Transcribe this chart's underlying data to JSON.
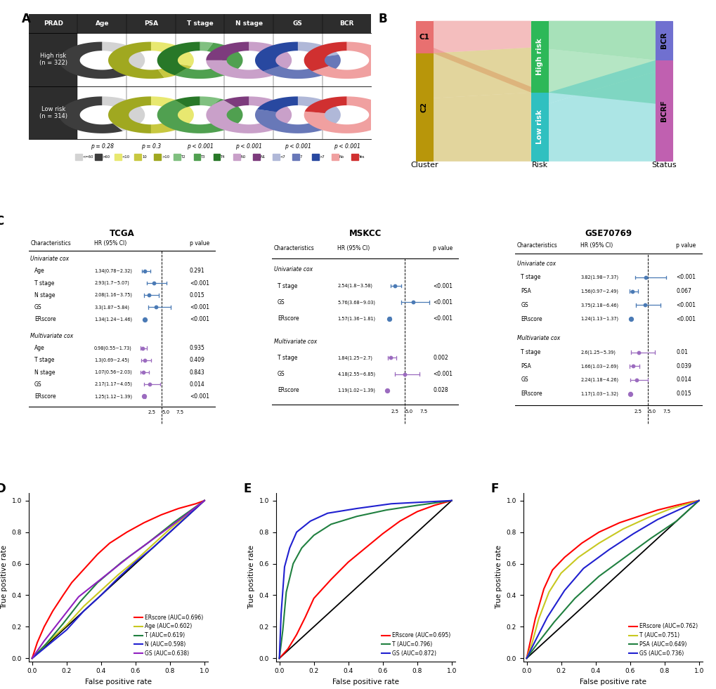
{
  "panel_A": {
    "header_color": "#2d2d2d",
    "col_labels": [
      "PRAD",
      "Age",
      "PSA",
      "T stage",
      "N stage",
      "GS",
      "BCR"
    ],
    "p_values": [
      "p = 0.28",
      "p = 0.3",
      "p < 0.001",
      "p < 0.001",
      "p < 0.001",
      "p < 0.001"
    ],
    "legend_labels": [
      "<=60",
      ">60",
      "<10",
      "10",
      ">10",
      "T2",
      "T3",
      "T4",
      "N0",
      "N1",
      "<7",
      "7",
      ">7",
      "No",
      "Yes"
    ],
    "legend_colors": [
      "#d3d3d3",
      "#3d3d3d",
      "#e8e870",
      "#c8c840",
      "#a0a820",
      "#80c080",
      "#50a050",
      "#287828",
      "#c9a0c9",
      "#7d3b7d",
      "#b0b8d8",
      "#6878b8",
      "#2848a0",
      "#f0a0a0",
      "#d03030"
    ],
    "donut_specs": [
      {
        "col": 1,
        "yh": 0.685,
        "yl": 0.315,
        "sh": [
          0.38,
          0.62
        ],
        "sl": [
          0.42,
          0.58
        ],
        "colors": [
          "#d3d3d3",
          "#3d3d3d"
        ]
      },
      {
        "col": 2,
        "yh": 0.685,
        "yl": 0.315,
        "sh": [
          0.3,
          0.15,
          0.55
        ],
        "sl": [
          0.38,
          0.12,
          0.5
        ],
        "colors": [
          "#e8e870",
          "#c8c840",
          "#a0a820"
        ]
      },
      {
        "col": 3,
        "yh": 0.685,
        "yl": 0.315,
        "sh": [
          0.05,
          0.55,
          0.4
        ],
        "sl": [
          0.08,
          0.82,
          0.1
        ],
        "colors": [
          "#80c080",
          "#50a050",
          "#287828"
        ]
      },
      {
        "col": 4,
        "yh": 0.685,
        "yl": 0.315,
        "sh": [
          0.75,
          0.25
        ],
        "sl": [
          0.9,
          0.1
        ],
        "colors": [
          "#c9a0c9",
          "#7d3b7d"
        ]
      },
      {
        "col": 5,
        "yh": 0.685,
        "yl": 0.315,
        "sh": [
          0.2,
          0.45,
          0.35
        ],
        "sl": [
          0.4,
          0.4,
          0.2
        ],
        "colors": [
          "#b0b8d8",
          "#6878b8",
          "#2848a0"
        ]
      },
      {
        "col": 6,
        "yh": 0.685,
        "yl": 0.315,
        "sh": [
          0.65,
          0.35
        ],
        "sl": [
          0.78,
          0.22
        ],
        "colors": [
          "#f0a0a0",
          "#d03030"
        ]
      }
    ]
  },
  "panel_C": {
    "cohorts": [
      "TCGA",
      "MSKCC",
      "GSE70769"
    ],
    "TCGA": {
      "univariate": {
        "labels": [
          "Age",
          "T stage",
          "N stage",
          "GS",
          "ERscore"
        ],
        "hr": [
          1.34,
          2.93,
          2.08,
          3.3,
          1.34
        ],
        "ci_low": [
          0.78,
          1.7,
          1.16,
          1.87,
          1.24
        ],
        "ci_high": [
          2.32,
          5.07,
          3.75,
          5.84,
          1.46
        ],
        "pval": [
          "0.291",
          "<0.001",
          "0.015",
          "<0.001",
          "<0.001"
        ],
        "ci_str": [
          "1.34(0.78~2.32)",
          "2.93(1.7~5.07)",
          "2.08(1.16~3.75)",
          "3.3(1.87~5.84)",
          "1.34(1.24~1.46)"
        ],
        "color": "#4a7ab5"
      },
      "multivariate": {
        "labels": [
          "Age",
          "T stage",
          "N stage",
          "GS",
          "ERscore"
        ],
        "hr": [
          0.98,
          1.3,
          1.07,
          2.17,
          1.25
        ],
        "ci_low": [
          0.55,
          0.69,
          0.56,
          1.17,
          1.12
        ],
        "ci_high": [
          1.73,
          2.45,
          2.03,
          4.05,
          1.39
        ],
        "pval": [
          "0.935",
          "0.409",
          "0.843",
          "0.014",
          "<0.001"
        ],
        "ci_str": [
          "0.98(0.55~1.73)",
          "1.3(0.69~2.45)",
          "1.07(0.56~2.03)",
          "2.17(1.17~4.05)",
          "1.25(1.12~1.39)"
        ],
        "color": "#9b6bbf"
      }
    },
    "MSKCC": {
      "univariate": {
        "labels": [
          "T stage",
          "GS",
          "ERscore"
        ],
        "hr": [
          2.54,
          5.76,
          1.57
        ],
        "ci_low": [
          1.8,
          3.68,
          1.36
        ],
        "ci_high": [
          3.58,
          9.03,
          1.81
        ],
        "pval": [
          "<0.001",
          "<0.001",
          "<0.001"
        ],
        "ci_str": [
          "2.54(1.8~3.58)",
          "5.76(3.68~9.03)",
          "1.57(1.36~1.81)"
        ],
        "color": "#4a7ab5"
      },
      "multivariate": {
        "labels": [
          "T stage",
          "GS",
          "ERscore"
        ],
        "hr": [
          1.84,
          4.18,
          1.19
        ],
        "ci_low": [
          1.25,
          2.55,
          1.02
        ],
        "ci_high": [
          2.7,
          6.85,
          1.39
        ],
        "pval": [
          "0.002",
          "<0.001",
          "0.028"
        ],
        "ci_str": [
          "1.84(1.25~2.7)",
          "4.18(2.55~6.85)",
          "1.19(1.02~1.39)"
        ],
        "color": "#9b6bbf"
      }
    },
    "GSE70769": {
      "univariate": {
        "labels": [
          "T stage",
          "PSA",
          "GS",
          "ERscore"
        ],
        "hr": [
          3.82,
          1.56,
          3.75,
          1.24
        ],
        "ci_low": [
          1.98,
          0.97,
          2.18,
          1.13
        ],
        "ci_high": [
          7.37,
          2.49,
          6.46,
          1.37
        ],
        "pval": [
          "<0.001",
          "0.067",
          "<0.001",
          "<0.001"
        ],
        "ci_str": [
          "3.82(1.98~7.37)",
          "1.56(0.97~2.49)",
          "3.75(2.18~6.46)",
          "1.24(1.13~1.37)"
        ],
        "color": "#4a7ab5"
      },
      "multivariate": {
        "labels": [
          "T stage",
          "PSA",
          "GS",
          "ERscore"
        ],
        "hr": [
          2.6,
          1.66,
          2.24,
          1.17
        ],
        "ci_low": [
          1.25,
          1.03,
          1.18,
          1.03
        ],
        "ci_high": [
          5.39,
          2.69,
          4.26,
          1.32
        ],
        "pval": [
          "0.01",
          "0.039",
          "0.014",
          "0.015"
        ],
        "ci_str": [
          "2.6(1.25~5.39)",
          "1.66(1.03~2.69)",
          "2.24(1.18~4.26)",
          "1.17(1.03~1.32)"
        ],
        "color": "#9b6bbf"
      }
    }
  },
  "panel_D": {
    "title": "D",
    "xlabel": "False positive rate",
    "ylabel": "True positive rate",
    "curves": [
      {
        "label": "ERscore (AUC=0.696)",
        "color": "#ff0000",
        "key": "ERscore"
      },
      {
        "label": "Age (AUC=0.602)",
        "color": "#c8c820",
        "key": "Age"
      },
      {
        "label": "T (AUC=0.619)",
        "color": "#208040",
        "key": "T"
      },
      {
        "label": "N (AUC=0.598)",
        "color": "#2020d0",
        "key": "N"
      },
      {
        "label": "GS (AUC=0.638)",
        "color": "#9020c0",
        "key": "GS"
      }
    ],
    "roc_data": {
      "ERscore": {
        "fpr": [
          0,
          0.03,
          0.07,
          0.12,
          0.18,
          0.23,
          0.28,
          0.33,
          0.38,
          0.45,
          0.55,
          0.65,
          0.75,
          0.85,
          0.95,
          1.0
        ],
        "tpr": [
          0,
          0.1,
          0.2,
          0.3,
          0.4,
          0.48,
          0.54,
          0.6,
          0.66,
          0.73,
          0.8,
          0.86,
          0.91,
          0.95,
          0.98,
          1.0
        ]
      },
      "Age": {
        "fpr": [
          0,
          0.1,
          0.2,
          0.3,
          0.4,
          0.5,
          0.6,
          0.7,
          0.8,
          0.9,
          1.0
        ],
        "tpr": [
          0,
          0.11,
          0.21,
          0.33,
          0.43,
          0.53,
          0.62,
          0.72,
          0.82,
          0.91,
          1.0
        ]
      },
      "T": {
        "fpr": [
          0,
          0.08,
          0.18,
          0.28,
          0.38,
          0.52,
          0.67,
          0.82,
          1.0
        ],
        "tpr": [
          0,
          0.09,
          0.22,
          0.36,
          0.48,
          0.61,
          0.73,
          0.86,
          1.0
        ]
      },
      "N": {
        "fpr": [
          0,
          0.1,
          0.2,
          0.3,
          0.4,
          0.5,
          0.6,
          0.7,
          0.8,
          0.9,
          1.0
        ],
        "tpr": [
          0,
          0.09,
          0.18,
          0.3,
          0.4,
          0.51,
          0.61,
          0.7,
          0.8,
          0.9,
          1.0
        ]
      },
      "GS": {
        "fpr": [
          0,
          0.07,
          0.17,
          0.27,
          0.42,
          0.57,
          0.72,
          0.87,
          1.0
        ],
        "tpr": [
          0,
          0.11,
          0.25,
          0.39,
          0.52,
          0.65,
          0.77,
          0.89,
          1.0
        ]
      }
    }
  },
  "panel_E": {
    "title": "E",
    "xlabel": "False positive rate",
    "ylabel": "True positive rate",
    "curves": [
      {
        "label": "ERscore (AUC=0.695)",
        "color": "#ff0000",
        "key": "ERscore"
      },
      {
        "label": "T (AUC=0.796)",
        "color": "#208040",
        "key": "T"
      },
      {
        "label": "GS (AUC=0.872)",
        "color": "#2020d0",
        "key": "GS"
      }
    ],
    "roc_data": {
      "ERscore": {
        "fpr": [
          0,
          0.05,
          0.1,
          0.15,
          0.2,
          0.3,
          0.4,
          0.5,
          0.6,
          0.7,
          0.8,
          0.9,
          1.0
        ],
        "tpr": [
          0,
          0.06,
          0.15,
          0.26,
          0.38,
          0.5,
          0.61,
          0.7,
          0.79,
          0.87,
          0.93,
          0.97,
          1.0
        ]
      },
      "T": {
        "fpr": [
          0,
          0.02,
          0.04,
          0.08,
          0.13,
          0.2,
          0.3,
          0.45,
          0.62,
          0.8,
          1.0
        ],
        "tpr": [
          0,
          0.18,
          0.42,
          0.6,
          0.7,
          0.78,
          0.85,
          0.9,
          0.94,
          0.97,
          1.0
        ]
      },
      "GS": {
        "fpr": [
          0,
          0.01,
          0.03,
          0.06,
          0.1,
          0.18,
          0.28,
          0.45,
          0.65,
          1.0
        ],
        "tpr": [
          0,
          0.28,
          0.58,
          0.7,
          0.8,
          0.87,
          0.92,
          0.95,
          0.98,
          1.0
        ]
      }
    }
  },
  "panel_F": {
    "title": "F",
    "xlabel": "False positive rate",
    "ylabel": "True positive rate",
    "curves": [
      {
        "label": "ERscore (AUC=0.762)",
        "color": "#ff0000",
        "key": "ERscore"
      },
      {
        "label": "T (AUC=0.751)",
        "color": "#c8c820",
        "key": "T"
      },
      {
        "label": "PSA (AUC=0.649)",
        "color": "#208040",
        "key": "PSA"
      },
      {
        "label": "GS (AUC=0.736)",
        "color": "#2020d0",
        "key": "GS"
      }
    ],
    "roc_data": {
      "ERscore": {
        "fpr": [
          0,
          0.02,
          0.05,
          0.1,
          0.15,
          0.22,
          0.32,
          0.42,
          0.54,
          0.65,
          0.76,
          0.87,
          0.95,
          1.0
        ],
        "tpr": [
          0,
          0.1,
          0.25,
          0.44,
          0.56,
          0.64,
          0.73,
          0.8,
          0.86,
          0.9,
          0.94,
          0.97,
          0.99,
          1.0
        ]
      },
      "T": {
        "fpr": [
          0,
          0.03,
          0.07,
          0.13,
          0.2,
          0.3,
          0.42,
          0.56,
          0.7,
          0.84,
          1.0
        ],
        "tpr": [
          0,
          0.09,
          0.25,
          0.42,
          0.54,
          0.64,
          0.73,
          0.82,
          0.89,
          0.95,
          1.0
        ]
      },
      "PSA": {
        "fpr": [
          0,
          0.06,
          0.16,
          0.28,
          0.42,
          0.57,
          0.72,
          0.87,
          1.0
        ],
        "tpr": [
          0,
          0.09,
          0.23,
          0.38,
          0.52,
          0.64,
          0.76,
          0.87,
          1.0
        ]
      },
      "GS": {
        "fpr": [
          0,
          0.05,
          0.12,
          0.22,
          0.33,
          0.48,
          0.62,
          0.76,
          0.9,
          1.0
        ],
        "tpr": [
          0,
          0.11,
          0.26,
          0.43,
          0.57,
          0.69,
          0.79,
          0.88,
          0.95,
          1.0
        ]
      }
    }
  }
}
